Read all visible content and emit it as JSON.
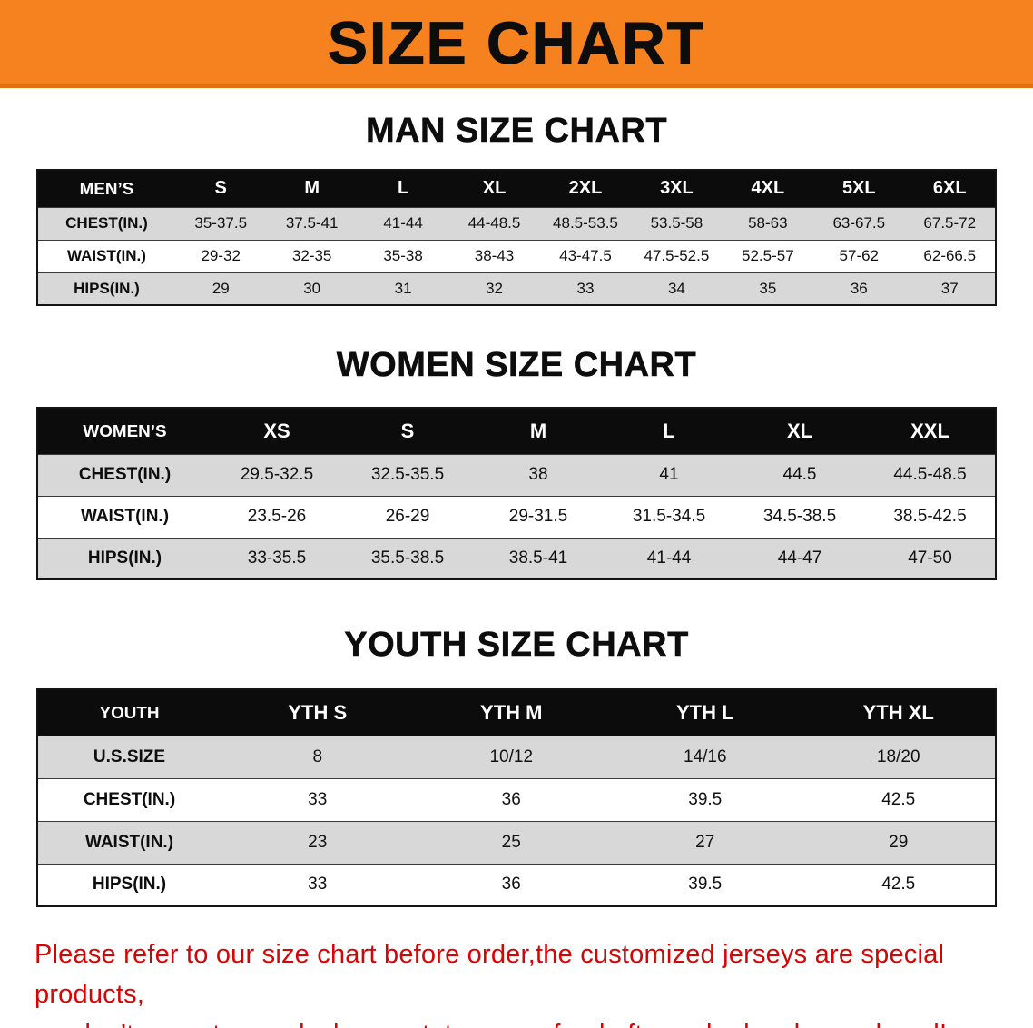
{
  "banner": {
    "title": "SIZE CHART"
  },
  "colors": {
    "banner_bg": "#f5821f",
    "table_header_bg": "#0c0c0c",
    "row_stripe": "#d8d8d8",
    "disclaimer_text": "#d40505"
  },
  "sections": [
    {
      "id": "men",
      "title": "MAN SIZE CHART",
      "header": [
        "MEN’S",
        "S",
        "M",
        "L",
        "XL",
        "2XL",
        "3XL",
        "4XL",
        "5XL",
        "6XL"
      ],
      "rows": [
        [
          "CHEST(IN.)",
          "35-37.5",
          "37.5-41",
          "41-44",
          "44-48.5",
          "48.5-53.5",
          "53.5-58",
          "58-63",
          "63-67.5",
          "67.5-72"
        ],
        [
          "WAIST(IN.)",
          "29-32",
          "32-35",
          "35-38",
          "38-43",
          "43-47.5",
          "47.5-52.5",
          "52.5-57",
          "57-62",
          "62-66.5"
        ],
        [
          "HIPS(IN.)",
          "29",
          "30",
          "31",
          "32",
          "33",
          "34",
          "35",
          "36",
          "37"
        ]
      ]
    },
    {
      "id": "women",
      "title": "WOMEN SIZE CHART",
      "header": [
        "WOMEN’S",
        "XS",
        "S",
        "M",
        "L",
        "XL",
        "XXL"
      ],
      "rows": [
        [
          "CHEST(IN.)",
          "29.5-32.5",
          "32.5-35.5",
          "38",
          "41",
          "44.5",
          "44.5-48.5"
        ],
        [
          "WAIST(IN.)",
          "23.5-26",
          "26-29",
          "29-31.5",
          "31.5-34.5",
          "34.5-38.5",
          "38.5-42.5"
        ],
        [
          "HIPS(IN.)",
          "33-35.5",
          "35.5-38.5",
          "38.5-41",
          "41-44",
          "44-47",
          "47-50"
        ]
      ]
    },
    {
      "id": "youth",
      "title": "YOUTH SIZE CHART",
      "header": [
        "YOUTH",
        "YTH S",
        "YTH M",
        "YTH L",
        "YTH XL"
      ],
      "rows": [
        [
          "U.S.SIZE",
          "8",
          "10/12",
          "14/16",
          "18/20"
        ],
        [
          "CHEST(IN.)",
          "33",
          "36",
          "39.5",
          "42.5"
        ],
        [
          "WAIST(IN.)",
          "23",
          "25",
          "27",
          "29"
        ],
        [
          "HIPS(IN.)",
          "33",
          "36",
          "39.5",
          "42.5"
        ]
      ]
    }
  ],
  "disclaimer": {
    "line1": "Please refer to our size chart before order,the customized jerseys are special products,",
    "line2": "we don’t accept cancel, change, teturn or refund after order has been placed!"
  }
}
